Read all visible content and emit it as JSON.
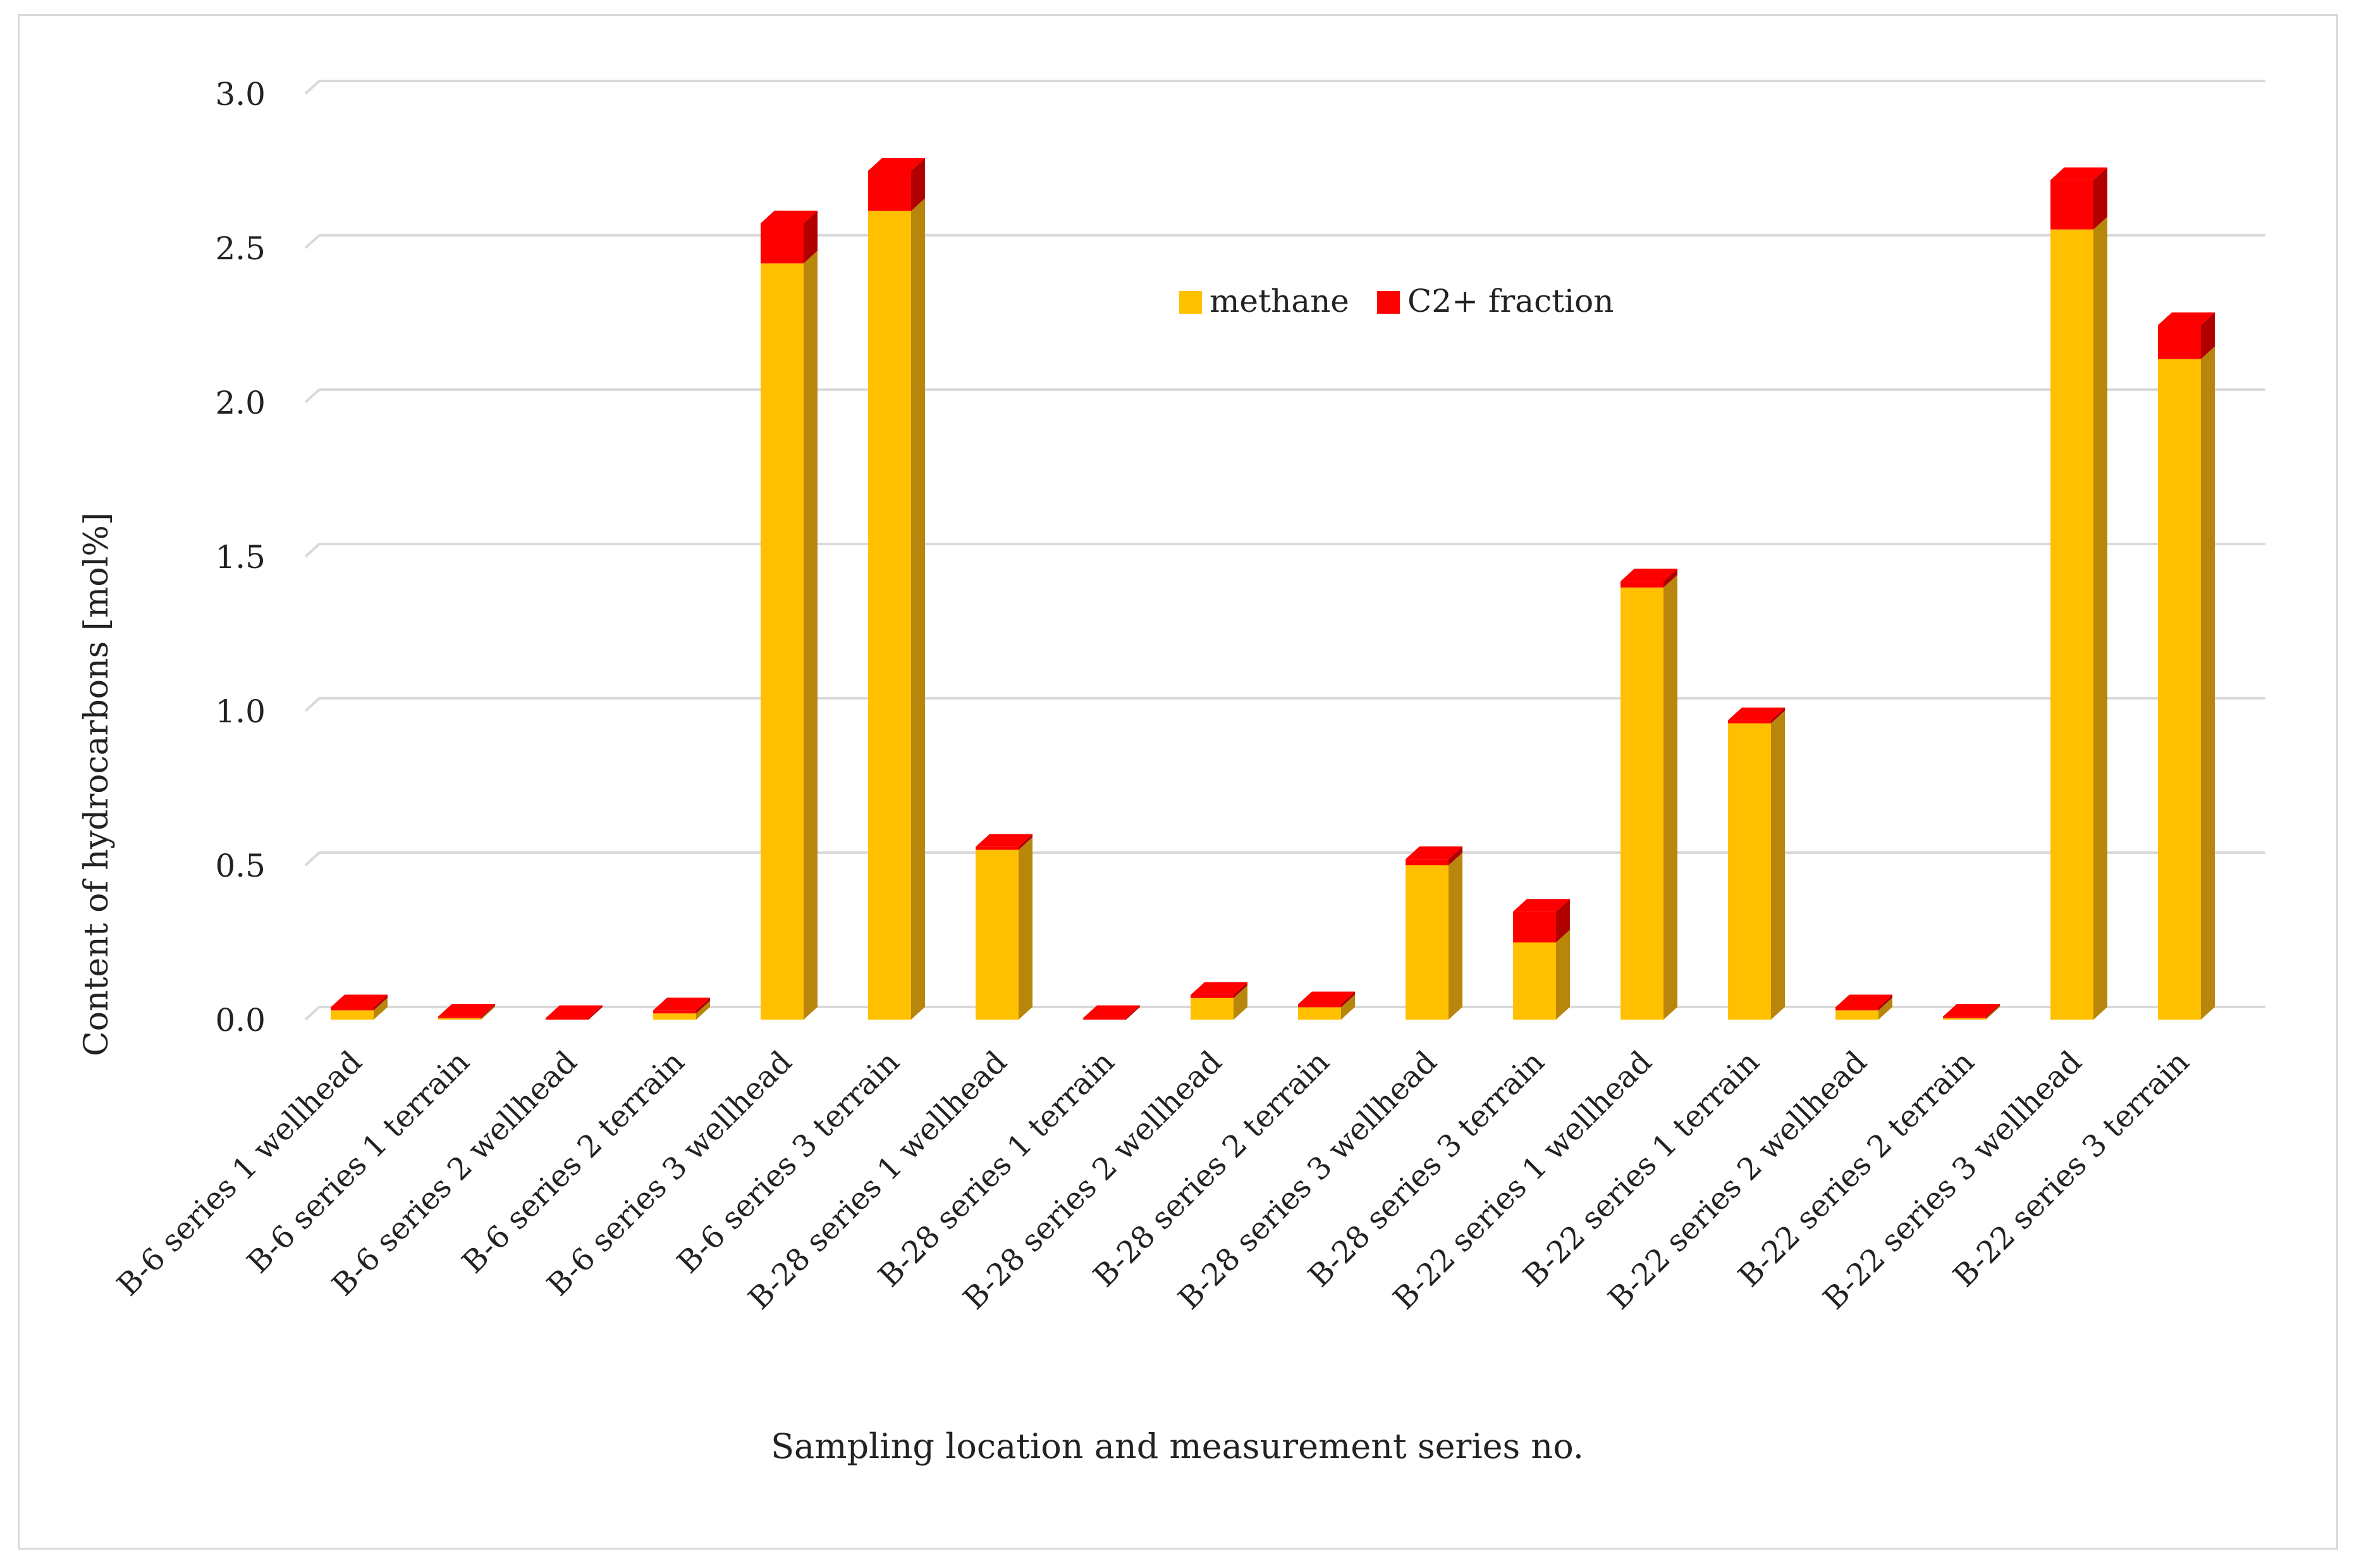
{
  "chart_data": {
    "type": "bar",
    "stacked": true,
    "style": "3d-column",
    "title": "",
    "xlabel": "Sampling location and measurement series no.",
    "ylabel": "Content of hydrocarbons [mol%]",
    "ylim": [
      0,
      3.0
    ],
    "yticks": [
      "0.0",
      "0.5",
      "1.0",
      "1.5",
      "2.0",
      "2.5",
      "3.0"
    ],
    "grid": true,
    "legend_position": "top-center",
    "categories": [
      "B-6 series 1 wellhead",
      "B-6 series 1 terrain",
      "B-6 series 2 wellhead",
      "B-6 series 2 terrain",
      "B-6 series 3 wellhead",
      "B-6 series 3 terrain",
      "B-28 series 1 wellhead",
      "B-28 series 1 terrain",
      "B-28 series 2 wellhead",
      "B-28 series 2 terrain",
      "B-28 series 3 wellhead",
      "B-28 series 3 terrain",
      "B-22 series 1 wellhead",
      "B-22 series 1 terrain",
      "B-22 series 2 wellhead",
      "B-22 series 2 terrain",
      "B-22 series 3 wellhead",
      "B-22 series 3 terrain"
    ],
    "series": [
      {
        "name": "methane",
        "color": "#FFC000",
        "side_color": "#B8860B",
        "values": [
          0.03,
          0.005,
          0.0,
          0.02,
          2.45,
          2.62,
          0.55,
          0.0,
          0.07,
          0.04,
          0.5,
          0.25,
          1.4,
          0.96,
          0.03,
          0.005,
          2.56,
          2.14
        ]
      },
      {
        "name": "C2+ fraction",
        "color": "#FF0000",
        "side_color": "#B00000",
        "values": [
          0.01,
          0.005,
          0.005,
          0.01,
          0.13,
          0.13,
          0.01,
          0.005,
          0.01,
          0.01,
          0.02,
          0.1,
          0.02,
          0.01,
          0.01,
          0.005,
          0.16,
          0.11
        ]
      }
    ]
  }
}
